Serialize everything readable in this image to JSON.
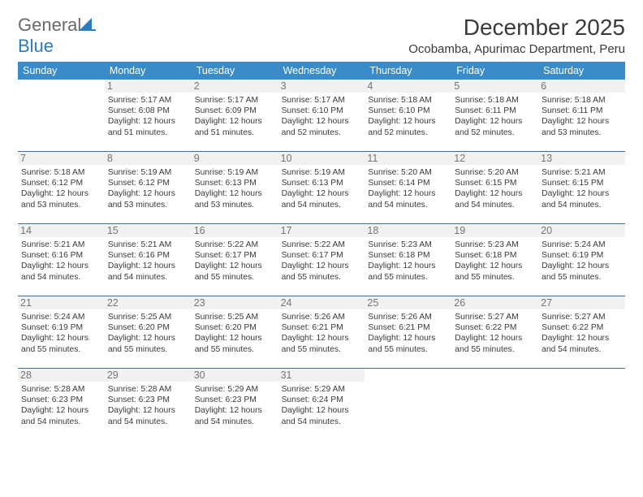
{
  "logo": {
    "text_gray": "General",
    "text_blue": "Blue",
    "icon_color": "#2b7bbf"
  },
  "title": "December 2025",
  "location": "Ocobamba, Apurimac Department, Peru",
  "day_names": [
    "Sunday",
    "Monday",
    "Tuesday",
    "Wednesday",
    "Thursday",
    "Friday",
    "Saturday"
  ],
  "colors": {
    "header_bg": "#3b8bc8",
    "header_fg": "#ffffff",
    "daynum_bg": "#f1f1f1",
    "daynum_fg": "#757575",
    "divider": "#3b6fa0",
    "text": "#3a3a3a"
  },
  "weeks": [
    [
      {
        "n": "",
        "sr": "",
        "ss": "",
        "dl": ""
      },
      {
        "n": "1",
        "sr": "Sunrise: 5:17 AM",
        "ss": "Sunset: 6:08 PM",
        "dl": "Daylight: 12 hours and 51 minutes."
      },
      {
        "n": "2",
        "sr": "Sunrise: 5:17 AM",
        "ss": "Sunset: 6:09 PM",
        "dl": "Daylight: 12 hours and 51 minutes."
      },
      {
        "n": "3",
        "sr": "Sunrise: 5:17 AM",
        "ss": "Sunset: 6:10 PM",
        "dl": "Daylight: 12 hours and 52 minutes."
      },
      {
        "n": "4",
        "sr": "Sunrise: 5:18 AM",
        "ss": "Sunset: 6:10 PM",
        "dl": "Daylight: 12 hours and 52 minutes."
      },
      {
        "n": "5",
        "sr": "Sunrise: 5:18 AM",
        "ss": "Sunset: 6:11 PM",
        "dl": "Daylight: 12 hours and 52 minutes."
      },
      {
        "n": "6",
        "sr": "Sunrise: 5:18 AM",
        "ss": "Sunset: 6:11 PM",
        "dl": "Daylight: 12 hours and 53 minutes."
      }
    ],
    [
      {
        "n": "7",
        "sr": "Sunrise: 5:18 AM",
        "ss": "Sunset: 6:12 PM",
        "dl": "Daylight: 12 hours and 53 minutes."
      },
      {
        "n": "8",
        "sr": "Sunrise: 5:19 AM",
        "ss": "Sunset: 6:12 PM",
        "dl": "Daylight: 12 hours and 53 minutes."
      },
      {
        "n": "9",
        "sr": "Sunrise: 5:19 AM",
        "ss": "Sunset: 6:13 PM",
        "dl": "Daylight: 12 hours and 53 minutes."
      },
      {
        "n": "10",
        "sr": "Sunrise: 5:19 AM",
        "ss": "Sunset: 6:13 PM",
        "dl": "Daylight: 12 hours and 54 minutes."
      },
      {
        "n": "11",
        "sr": "Sunrise: 5:20 AM",
        "ss": "Sunset: 6:14 PM",
        "dl": "Daylight: 12 hours and 54 minutes."
      },
      {
        "n": "12",
        "sr": "Sunrise: 5:20 AM",
        "ss": "Sunset: 6:15 PM",
        "dl": "Daylight: 12 hours and 54 minutes."
      },
      {
        "n": "13",
        "sr": "Sunrise: 5:21 AM",
        "ss": "Sunset: 6:15 PM",
        "dl": "Daylight: 12 hours and 54 minutes."
      }
    ],
    [
      {
        "n": "14",
        "sr": "Sunrise: 5:21 AM",
        "ss": "Sunset: 6:16 PM",
        "dl": "Daylight: 12 hours and 54 minutes."
      },
      {
        "n": "15",
        "sr": "Sunrise: 5:21 AM",
        "ss": "Sunset: 6:16 PM",
        "dl": "Daylight: 12 hours and 54 minutes."
      },
      {
        "n": "16",
        "sr": "Sunrise: 5:22 AM",
        "ss": "Sunset: 6:17 PM",
        "dl": "Daylight: 12 hours and 55 minutes."
      },
      {
        "n": "17",
        "sr": "Sunrise: 5:22 AM",
        "ss": "Sunset: 6:17 PM",
        "dl": "Daylight: 12 hours and 55 minutes."
      },
      {
        "n": "18",
        "sr": "Sunrise: 5:23 AM",
        "ss": "Sunset: 6:18 PM",
        "dl": "Daylight: 12 hours and 55 minutes."
      },
      {
        "n": "19",
        "sr": "Sunrise: 5:23 AM",
        "ss": "Sunset: 6:18 PM",
        "dl": "Daylight: 12 hours and 55 minutes."
      },
      {
        "n": "20",
        "sr": "Sunrise: 5:24 AM",
        "ss": "Sunset: 6:19 PM",
        "dl": "Daylight: 12 hours and 55 minutes."
      }
    ],
    [
      {
        "n": "21",
        "sr": "Sunrise: 5:24 AM",
        "ss": "Sunset: 6:19 PM",
        "dl": "Daylight: 12 hours and 55 minutes."
      },
      {
        "n": "22",
        "sr": "Sunrise: 5:25 AM",
        "ss": "Sunset: 6:20 PM",
        "dl": "Daylight: 12 hours and 55 minutes."
      },
      {
        "n": "23",
        "sr": "Sunrise: 5:25 AM",
        "ss": "Sunset: 6:20 PM",
        "dl": "Daylight: 12 hours and 55 minutes."
      },
      {
        "n": "24",
        "sr": "Sunrise: 5:26 AM",
        "ss": "Sunset: 6:21 PM",
        "dl": "Daylight: 12 hours and 55 minutes."
      },
      {
        "n": "25",
        "sr": "Sunrise: 5:26 AM",
        "ss": "Sunset: 6:21 PM",
        "dl": "Daylight: 12 hours and 55 minutes."
      },
      {
        "n": "26",
        "sr": "Sunrise: 5:27 AM",
        "ss": "Sunset: 6:22 PM",
        "dl": "Daylight: 12 hours and 55 minutes."
      },
      {
        "n": "27",
        "sr": "Sunrise: 5:27 AM",
        "ss": "Sunset: 6:22 PM",
        "dl": "Daylight: 12 hours and 54 minutes."
      }
    ],
    [
      {
        "n": "28",
        "sr": "Sunrise: 5:28 AM",
        "ss": "Sunset: 6:23 PM",
        "dl": "Daylight: 12 hours and 54 minutes."
      },
      {
        "n": "29",
        "sr": "Sunrise: 5:28 AM",
        "ss": "Sunset: 6:23 PM",
        "dl": "Daylight: 12 hours and 54 minutes."
      },
      {
        "n": "30",
        "sr": "Sunrise: 5:29 AM",
        "ss": "Sunset: 6:23 PM",
        "dl": "Daylight: 12 hours and 54 minutes."
      },
      {
        "n": "31",
        "sr": "Sunrise: 5:29 AM",
        "ss": "Sunset: 6:24 PM",
        "dl": "Daylight: 12 hours and 54 minutes."
      },
      {
        "n": "",
        "sr": "",
        "ss": "",
        "dl": ""
      },
      {
        "n": "",
        "sr": "",
        "ss": "",
        "dl": ""
      },
      {
        "n": "",
        "sr": "",
        "ss": "",
        "dl": ""
      }
    ]
  ]
}
